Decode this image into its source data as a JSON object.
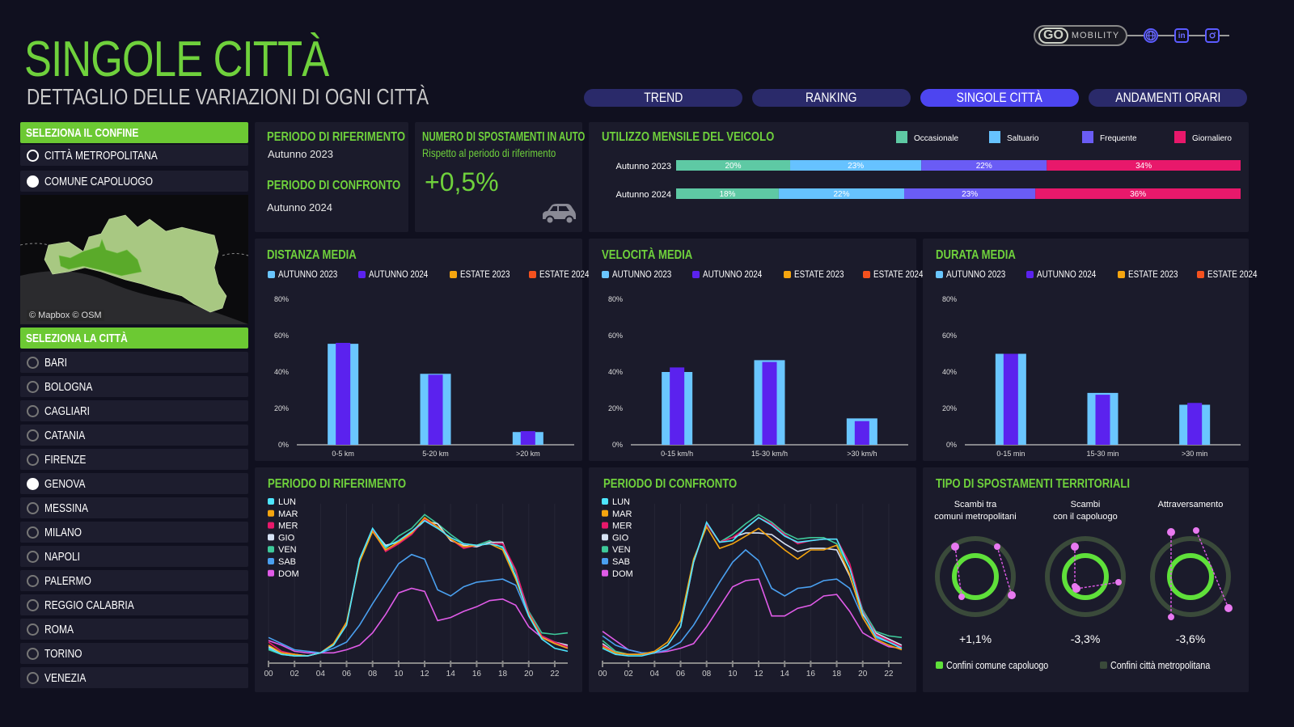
{
  "header": {
    "title": "SINGOLE CITTÀ",
    "subtitle": "DETTAGLIO DELLE VARIAZIONI DI OGNI CITTÀ",
    "logo_text": "GO",
    "logo_brand": "MOBILITY",
    "icons": [
      "globe-icon",
      "linkedin-icon",
      "instagram-icon"
    ]
  },
  "tabs": [
    {
      "label": "TREND",
      "active": false
    },
    {
      "label": "RANKING",
      "active": false
    },
    {
      "label": "SINGOLE CITTÀ",
      "active": true
    },
    {
      "label": "ANDAMENTI ORARI",
      "active": false
    }
  ],
  "sidebar": {
    "confine_header": "SELEZIONA IL CONFINE",
    "confine_options": [
      {
        "label": "CITTÀ METROPOLITANA",
        "selected": false
      },
      {
        "label": "COMUNE CAPOLUOGO",
        "selected": true
      }
    ],
    "map_attribution": "© Mapbox © OSM",
    "city_header": "SELEZIONA LA CITTÀ",
    "cities": [
      {
        "label": "BARI",
        "selected": false
      },
      {
        "label": "BOLOGNA",
        "selected": false
      },
      {
        "label": "CAGLIARI",
        "selected": false
      },
      {
        "label": "CATANIA",
        "selected": false
      },
      {
        "label": "FIRENZE",
        "selected": false
      },
      {
        "label": "GENOVA",
        "selected": true
      },
      {
        "label": "MESSINA",
        "selected": false
      },
      {
        "label": "MILANO",
        "selected": false
      },
      {
        "label": "NAPOLI",
        "selected": false
      },
      {
        "label": "PALERMO",
        "selected": false
      },
      {
        "label": "REGGIO CALABRIA",
        "selected": false
      },
      {
        "label": "ROMA",
        "selected": false
      },
      {
        "label": "TORINO",
        "selected": false
      },
      {
        "label": "VENEZIA",
        "selected": false
      }
    ]
  },
  "periods": {
    "ref_label": "PERIODO DI RIFERIMENTO",
    "ref_value": "Autunno 2023",
    "cmp_label": "PERIODO DI CONFRONTO",
    "cmp_value": "Autunno 2024"
  },
  "trips": {
    "title": "NUMERO DI SPOSTAMENTI IN AUTO",
    "subtitle": "Rispetto al periodo di riferimento",
    "value": "+0,5%",
    "icon": "car-icon"
  },
  "colors": {
    "green": "#6fd13c",
    "autunno2023": "#6ac6ff",
    "autunno2024": "#5b22ee",
    "estate2023": "#f5a50f",
    "estate2024": "#f4511e",
    "occasionale": "#5ec9a4",
    "saltuario": "#66c2ff",
    "frequente": "#6a5cf5",
    "giornaliero": "#e8186b"
  },
  "bar_legend": [
    "AUTUNNO 2023",
    "AUTUNNO 2024",
    "ESTATE 2023",
    "ESTATE 2024"
  ],
  "day_legend": [
    "LUN",
    "MAR",
    "MER",
    "GIO",
    "VEN",
    "SAB",
    "DOM"
  ],
  "chart_data": [
    {
      "id": "utilizzo",
      "type": "bar",
      "orientation": "horizontal-stacked",
      "title": "UTILIZZO MENSILE DEL VEICOLO",
      "categories": [
        "Autunno 2023",
        "Autunno 2024"
      ],
      "series": [
        {
          "name": "Occasionale",
          "values": [
            20,
            18
          ],
          "labels": [
            "20%",
            "18%"
          ]
        },
        {
          "name": "Saltuario",
          "values": [
            23,
            22
          ],
          "labels": [
            "23%",
            "22%"
          ]
        },
        {
          "name": "Frequente",
          "values": [
            22,
            23
          ],
          "labels": [
            "22%",
            "23%"
          ]
        },
        {
          "name": "Giornaliero",
          "values": [
            34,
            36
          ],
          "labels": [
            "34%",
            "36%"
          ]
        }
      ],
      "legend": "top-right"
    },
    {
      "id": "distanza",
      "type": "bar",
      "title": "DISTANZA MEDIA",
      "categories": [
        "0-5 km",
        "5-20 km",
        ">20 km"
      ],
      "series": [
        {
          "name": "AUTUNNO 2023",
          "values": [
            55.5,
            39,
            7
          ]
        },
        {
          "name": "AUTUNNO 2024",
          "values": [
            56,
            38.5,
            7.5
          ]
        }
      ],
      "yticks": [
        "0%",
        "20%",
        "40%",
        "60%",
        "80%"
      ],
      "ylim": [
        0,
        80
      ]
    },
    {
      "id": "velocita",
      "type": "bar",
      "title": "VELOCITÀ MEDIA",
      "categories": [
        "0-15 km/h",
        "15-30 km/h",
        ">30 km/h"
      ],
      "series": [
        {
          "name": "AUTUNNO 2023",
          "values": [
            40,
            46.5,
            14.5
          ]
        },
        {
          "name": "AUTUNNO 2024",
          "values": [
            42.5,
            45.5,
            13
          ]
        }
      ],
      "yticks": [
        "0%",
        "20%",
        "40%",
        "60%",
        "80%"
      ],
      "ylim": [
        0,
        80
      ]
    },
    {
      "id": "durata",
      "type": "bar",
      "title": "DURATA MEDIA",
      "categories": [
        "0-15 min",
        "15-30 min",
        ">30 min"
      ],
      "series": [
        {
          "name": "AUTUNNO 2023",
          "values": [
            50,
            28.5,
            22
          ]
        },
        {
          "name": "AUTUNNO 2024",
          "values": [
            50,
            27.5,
            23
          ]
        }
      ],
      "yticks": [
        "0%",
        "20%",
        "40%",
        "60%",
        "80%"
      ],
      "ylim": [
        0,
        80
      ]
    },
    {
      "id": "riferimento",
      "type": "line",
      "title": "PERIODO DI RIFERIMENTO",
      "x": [
        0,
        1,
        2,
        3,
        4,
        5,
        6,
        7,
        8,
        9,
        10,
        11,
        12,
        13,
        14,
        15,
        16,
        17,
        18,
        19,
        20,
        21,
        22,
        23
      ],
      "xticks": [
        "00",
        "02",
        "04",
        "06",
        "08",
        "10",
        "12",
        "14",
        "16",
        "18",
        "20",
        "22"
      ],
      "ylim": [
        0,
        100
      ],
      "series": [
        {
          "name": "LUN",
          "values": [
            6,
            2,
            1,
            1,
            3,
            8,
            21,
            64,
            84,
            72,
            76,
            82,
            89,
            84,
            78,
            74,
            73,
            74,
            72,
            53,
            27,
            12,
            6,
            4
          ]
        },
        {
          "name": "MAR",
          "values": [
            8,
            3,
            2,
            1,
            3,
            9,
            23,
            62,
            82,
            70,
            75,
            81,
            91,
            85,
            77,
            72,
            73,
            74,
            70,
            51,
            28,
            13,
            9,
            6
          ]
        },
        {
          "name": "MER",
          "values": [
            10,
            4,
            2,
            1,
            3,
            9,
            22,
            63,
            83,
            69,
            74,
            80,
            90,
            85,
            77,
            71,
            73,
            74,
            74,
            57,
            29,
            14,
            10,
            7
          ]
        },
        {
          "name": "GIO",
          "values": [
            7,
            3,
            2,
            1,
            3,
            9,
            22,
            63,
            83,
            73,
            75,
            81,
            89,
            87,
            76,
            73,
            72,
            75,
            75,
            52,
            28,
            13,
            10,
            8
          ]
        },
        {
          "name": "VEN",
          "values": [
            5,
            2,
            1,
            1,
            3,
            9,
            22,
            64,
            83,
            71,
            79,
            84,
            93,
            87,
            80,
            74,
            73,
            76,
            71,
            56,
            30,
            16,
            15,
            16
          ]
        },
        {
          "name": "SAB",
          "values": [
            13,
            9,
            5,
            4,
            3,
            6,
            10,
            21,
            35,
            48,
            61,
            67,
            64,
            44,
            40,
            46,
            49,
            50,
            51,
            47,
            27,
            14,
            10,
            7
          ]
        },
        {
          "name": "DOM",
          "values": [
            11,
            8,
            4,
            3,
            3,
            3,
            5,
            8,
            16,
            28,
            42,
            45,
            43,
            24,
            26,
            30,
            33,
            37,
            38,
            34,
            20,
            13,
            9,
            6
          ]
        }
      ]
    },
    {
      "id": "confronto",
      "type": "line",
      "title": "PERIODO DI CONFRONTO",
      "x": [
        0,
        1,
        2,
        3,
        4,
        5,
        6,
        7,
        8,
        9,
        10,
        11,
        12,
        13,
        14,
        15,
        16,
        17,
        18,
        19,
        20,
        21,
        22,
        23
      ],
      "xticks": [
        "00",
        "02",
        "04",
        "06",
        "08",
        "10",
        "12",
        "14",
        "16",
        "18",
        "20",
        "22"
      ],
      "ylim": [
        0,
        100
      ],
      "series": [
        {
          "name": "LUN",
          "values": [
            6,
            2,
            1,
            1,
            3,
            8,
            20,
            62,
            88,
            75,
            76,
            84,
            91,
            86,
            79,
            75,
            76,
            77,
            77,
            58,
            29,
            14,
            10,
            6
          ]
        },
        {
          "name": "MAR",
          "values": [
            7,
            3,
            2,
            2,
            4,
            10,
            24,
            64,
            85,
            71,
            74,
            79,
            84,
            77,
            70,
            64,
            70,
            70,
            73,
            54,
            26,
            12,
            8,
            5
          ]
        },
        {
          "name": "MER",
          "values": [
            8,
            3,
            2,
            2,
            3,
            8,
            20,
            62,
            87,
            75,
            78,
            84,
            91,
            87,
            80,
            74,
            76,
            77,
            77,
            61,
            30,
            15,
            11,
            7
          ]
        },
        {
          "name": "GIO",
          "values": [
            9,
            3,
            2,
            2,
            3,
            8,
            20,
            62,
            87,
            75,
            78,
            81,
            81,
            80,
            74,
            69,
            71,
            71,
            70,
            53,
            28,
            16,
            12,
            8
          ]
        },
        {
          "name": "VEN",
          "values": [
            11,
            4,
            2,
            2,
            3,
            8,
            20,
            62,
            87,
            75,
            80,
            87,
            93,
            88,
            81,
            77,
            78,
            78,
            74,
            58,
            31,
            17,
            14,
            13
          ]
        },
        {
          "name": "SAB",
          "values": [
            14,
            8,
            5,
            3,
            3,
            5,
            10,
            21,
            35,
            49,
            62,
            70,
            63,
            45,
            40,
            45,
            46,
            50,
            51,
            45,
            26,
            13,
            10,
            7
          ]
        },
        {
          "name": "DOM",
          "values": [
            17,
            11,
            5,
            3,
            3,
            4,
            6,
            9,
            20,
            33,
            46,
            50,
            51,
            27,
            27,
            32,
            34,
            40,
            41,
            30,
            16,
            11,
            7,
            6
          ]
        }
      ]
    }
  ],
  "territoriali": {
    "title": "TIPO DI SPOSTAMENTI TERRITORIALI",
    "items": [
      {
        "line1": "Scambi tra",
        "line2": "comuni metropolitani",
        "value": "+1,1%"
      },
      {
        "line1": "Scambi",
        "line2": "con il capoluogo",
        "value": "-3,3%"
      },
      {
        "line1": "Attraversamento",
        "line2": "",
        "value": "-3,6%"
      }
    ],
    "legend": [
      {
        "label": "Confini comune capoluogo",
        "color": "#5fe03a"
      },
      {
        "label": "Confini città metropolitana",
        "color": "#3a4a3a"
      }
    ]
  }
}
